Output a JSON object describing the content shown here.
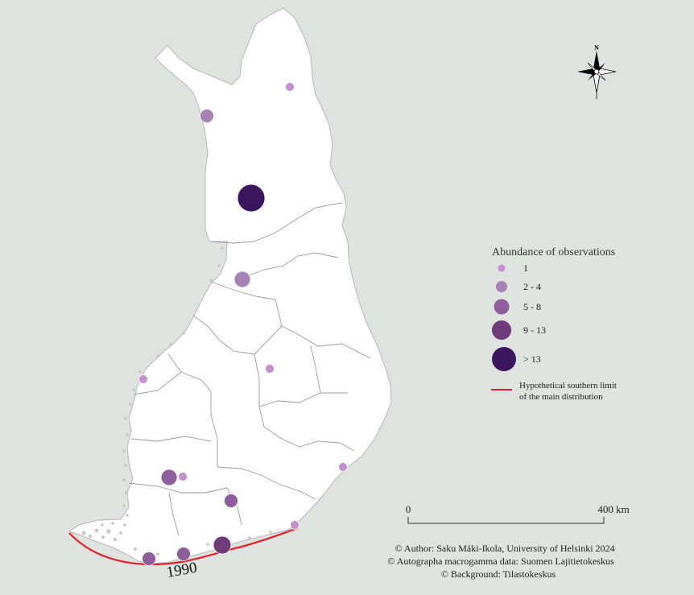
{
  "legend": {
    "title": "Abundance of observations",
    "classes": [
      {
        "label": "1",
        "color": "#c58fd0"
      },
      {
        "label": "2 - 4",
        "color": "#a683b5"
      },
      {
        "label": "5 - 8",
        "color": "#8e5e9a"
      },
      {
        "label": "9 - 13",
        "color": "#6e3c78"
      },
      {
        "label": "> 13",
        "color": "#3d1660"
      }
    ],
    "limit_line": {
      "label_line1": "Hypothetical southern limit",
      "label_line2": "of the main distribution",
      "color": "#e0202c"
    }
  },
  "limit_year": "1990",
  "scale_bar": {
    "start_label": "0",
    "end_label": "400 km"
  },
  "north_arrow": {
    "letter": "N",
    "icon": "compass-rose-icon"
  },
  "credits": {
    "author": "© Author: Saku Mäki-Ikola, University of Helsinki 2024",
    "data": "© Autographa macrogamma data: Suomen Lajitietokeskus",
    "background": "© Background: Tilastokeskus"
  },
  "colors": {
    "background": "#dfe3df",
    "land": "#ffffff",
    "border": "#999999"
  }
}
